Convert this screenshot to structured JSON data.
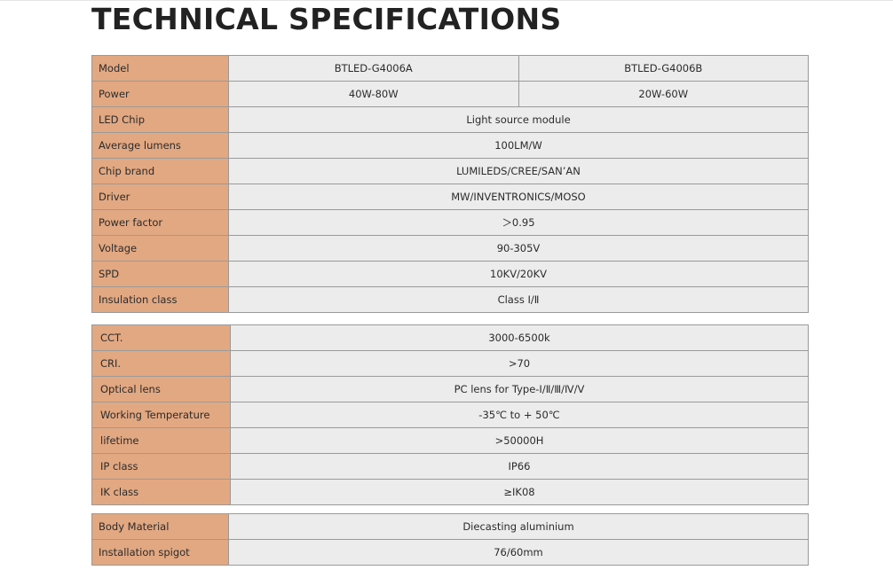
{
  "title": "TECHNICAL SPECIFICATIONS",
  "colors": {
    "label_bg": "#e2a882",
    "value_bg": "#ececec",
    "border": "#9a9a9a",
    "title": "#222222"
  },
  "table1": {
    "model": {
      "label": "Model",
      "a": "BTLED-G4006A",
      "b": "BTLED-G4006B"
    },
    "power": {
      "label": "Power",
      "a": "40W-80W",
      "b": "20W-60W"
    },
    "rows": [
      {
        "label": " LED Chip",
        "value": "Light source module"
      },
      {
        "label": "Average lumens",
        "value": "100LM/W"
      },
      {
        "label": "Chip brand",
        "value": "LUMILEDS/CREE/SAN’AN"
      },
      {
        "label": "Driver",
        "value": "MW/INVENTRONICS/MOSO"
      },
      {
        "label": "Power factor",
        "value": "＞0.95"
      },
      {
        "label": "Voltage",
        "value": "90-305V"
      },
      {
        "label": "SPD",
        "value": "10KV/20KV"
      },
      {
        "label": "Insulation class",
        "value": "Class Ⅰ/Ⅱ"
      }
    ]
  },
  "table2": {
    "rows": [
      {
        "label": "CCT.",
        "value": "3000-6500k"
      },
      {
        "label": "CRI.",
        "value": ">70"
      },
      {
        "label": "Optical lens",
        "value": "PC lens for Type-Ⅰ/Ⅱ/Ⅲ/Ⅳ/Ⅴ"
      },
      {
        "label": "Working Temperature",
        "value": "-35℃ to + 50℃"
      },
      {
        "label": "lifetime",
        "value": ">50000H"
      },
      {
        "label": "IP class",
        "value": "IP66"
      },
      {
        "label": "IK class",
        "value": "≥IK08"
      }
    ]
  },
  "table3": {
    "rows": [
      {
        "label": "Body Material",
        "value": "Diecasting aluminium"
      },
      {
        "label": "Installation spigot",
        "value": "76/60mm"
      }
    ]
  }
}
